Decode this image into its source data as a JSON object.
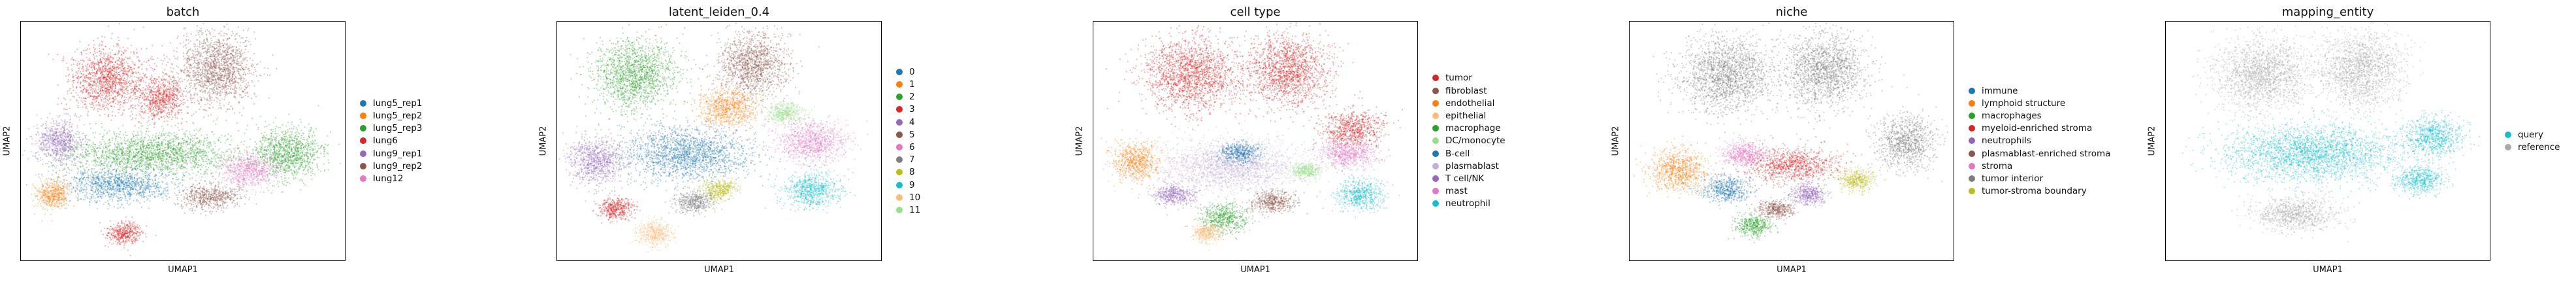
{
  "chart_data": [
    {
      "type": "scatter",
      "title": "batch",
      "xlabel": "UMAP1",
      "ylabel": "UMAP2",
      "legend_position": "right",
      "categories": [
        {
          "label": "lung5_rep1",
          "color": "#1f77b4"
        },
        {
          "label": "lung5_rep2",
          "color": "#ff7f0e"
        },
        {
          "label": "lung5_rep3",
          "color": "#2ca02c"
        },
        {
          "label": "lung6",
          "color": "#d62728"
        },
        {
          "label": "lung9_rep1",
          "color": "#9467bd"
        },
        {
          "label": "lung9_rep2",
          "color": "#8c564b"
        },
        {
          "label": "lung12",
          "color": "#e377c2"
        }
      ],
      "clusters": [
        {
          "cat": 3,
          "x": 0.27,
          "y": 0.24,
          "rx": 0.13,
          "ry": 0.15
        },
        {
          "cat": 5,
          "x": 0.6,
          "y": 0.2,
          "rx": 0.13,
          "ry": 0.17
        },
        {
          "cat": 3,
          "x": 0.43,
          "y": 0.32,
          "rx": 0.08,
          "ry": 0.1
        },
        {
          "cat": 2,
          "x": 0.4,
          "y": 0.55,
          "rx": 0.3,
          "ry": 0.1
        },
        {
          "cat": 2,
          "x": 0.82,
          "y": 0.55,
          "rx": 0.12,
          "ry": 0.12
        },
        {
          "cat": 6,
          "x": 0.7,
          "y": 0.62,
          "rx": 0.1,
          "ry": 0.08
        },
        {
          "cat": 4,
          "x": 0.12,
          "y": 0.5,
          "rx": 0.08,
          "ry": 0.1
        },
        {
          "cat": 0,
          "x": 0.3,
          "y": 0.68,
          "rx": 0.18,
          "ry": 0.08
        },
        {
          "cat": 1,
          "x": 0.1,
          "y": 0.72,
          "rx": 0.06,
          "ry": 0.07
        },
        {
          "cat": 3,
          "x": 0.32,
          "y": 0.88,
          "rx": 0.06,
          "ry": 0.05
        },
        {
          "cat": 5,
          "x": 0.58,
          "y": 0.73,
          "rx": 0.1,
          "ry": 0.06
        }
      ]
    },
    {
      "type": "scatter",
      "title": "latent_leiden_0.4",
      "xlabel": "UMAP1",
      "ylabel": "UMAP2",
      "legend_position": "right",
      "categories": [
        {
          "label": "0",
          "color": "#1f77b4"
        },
        {
          "label": "1",
          "color": "#ff7f0e"
        },
        {
          "label": "2",
          "color": "#2ca02c"
        },
        {
          "label": "3",
          "color": "#d62728"
        },
        {
          "label": "4",
          "color": "#9467bd"
        },
        {
          "label": "5",
          "color": "#8c564b"
        },
        {
          "label": "6",
          "color": "#e377c2"
        },
        {
          "label": "7",
          "color": "#7f7f7f"
        },
        {
          "label": "8",
          "color": "#bcbd22"
        },
        {
          "label": "9",
          "color": "#17becf"
        },
        {
          "label": "10",
          "color": "#ffbb78"
        },
        {
          "label": "11",
          "color": "#98df8a"
        }
      ],
      "clusters": [
        {
          "cat": 2,
          "x": 0.24,
          "y": 0.22,
          "rx": 0.14,
          "ry": 0.16
        },
        {
          "cat": 5,
          "x": 0.6,
          "y": 0.18,
          "rx": 0.12,
          "ry": 0.15
        },
        {
          "cat": 1,
          "x": 0.52,
          "y": 0.36,
          "rx": 0.1,
          "ry": 0.09
        },
        {
          "cat": 0,
          "x": 0.4,
          "y": 0.55,
          "rx": 0.22,
          "ry": 0.12
        },
        {
          "cat": 4,
          "x": 0.12,
          "y": 0.58,
          "rx": 0.09,
          "ry": 0.11
        },
        {
          "cat": 6,
          "x": 0.78,
          "y": 0.5,
          "rx": 0.12,
          "ry": 0.1
        },
        {
          "cat": 9,
          "x": 0.78,
          "y": 0.7,
          "rx": 0.1,
          "ry": 0.08
        },
        {
          "cat": 11,
          "x": 0.7,
          "y": 0.38,
          "rx": 0.06,
          "ry": 0.05
        },
        {
          "cat": 10,
          "x": 0.3,
          "y": 0.88,
          "rx": 0.06,
          "ry": 0.06
        },
        {
          "cat": 8,
          "x": 0.5,
          "y": 0.7,
          "rx": 0.06,
          "ry": 0.05
        },
        {
          "cat": 3,
          "x": 0.18,
          "y": 0.78,
          "rx": 0.06,
          "ry": 0.05
        },
        {
          "cat": 7,
          "x": 0.42,
          "y": 0.75,
          "rx": 0.07,
          "ry": 0.05
        }
      ]
    },
    {
      "type": "scatter",
      "title": "cell type",
      "xlabel": "UMAP1",
      "ylabel": "UMAP2",
      "legend_position": "right",
      "categories": [
        {
          "label": "tumor",
          "color": "#d62728"
        },
        {
          "label": "fibroblast",
          "color": "#8c564b"
        },
        {
          "label": "endothelial",
          "color": "#ff7f0e"
        },
        {
          "label": "epithelial",
          "color": "#ffbb78"
        },
        {
          "label": "macrophage",
          "color": "#2ca02c"
        },
        {
          "label": "DC/monocyte",
          "color": "#98df8a"
        },
        {
          "label": "B-cell",
          "color": "#1f77b4"
        },
        {
          "label": "plasmablast",
          "color": "#c5b0d5"
        },
        {
          "label": "T cell/NK",
          "color": "#9467bd"
        },
        {
          "label": "mast",
          "color": "#e377c2"
        },
        {
          "label": "neutrophil",
          "color": "#17becf"
        }
      ],
      "clusters": [
        {
          "cat": 0,
          "x": 0.3,
          "y": 0.22,
          "rx": 0.16,
          "ry": 0.17
        },
        {
          "cat": 0,
          "x": 0.6,
          "y": 0.2,
          "rx": 0.14,
          "ry": 0.17
        },
        {
          "cat": 0,
          "x": 0.8,
          "y": 0.45,
          "rx": 0.1,
          "ry": 0.09
        },
        {
          "cat": 7,
          "x": 0.42,
          "y": 0.6,
          "rx": 0.24,
          "ry": 0.12
        },
        {
          "cat": 2,
          "x": 0.13,
          "y": 0.58,
          "rx": 0.08,
          "ry": 0.09
        },
        {
          "cat": 9,
          "x": 0.78,
          "y": 0.55,
          "rx": 0.1,
          "ry": 0.07
        },
        {
          "cat": 10,
          "x": 0.82,
          "y": 0.72,
          "rx": 0.08,
          "ry": 0.07
        },
        {
          "cat": 4,
          "x": 0.4,
          "y": 0.82,
          "rx": 0.08,
          "ry": 0.07
        },
        {
          "cat": 1,
          "x": 0.55,
          "y": 0.75,
          "rx": 0.08,
          "ry": 0.05
        },
        {
          "cat": 8,
          "x": 0.25,
          "y": 0.72,
          "rx": 0.07,
          "ry": 0.05
        },
        {
          "cat": 6,
          "x": 0.45,
          "y": 0.55,
          "rx": 0.07,
          "ry": 0.05
        },
        {
          "cat": 3,
          "x": 0.35,
          "y": 0.88,
          "rx": 0.05,
          "ry": 0.04
        },
        {
          "cat": 5,
          "x": 0.65,
          "y": 0.62,
          "rx": 0.05,
          "ry": 0.04
        }
      ]
    },
    {
      "type": "scatter",
      "title": "niche",
      "xlabel": "UMAP1",
      "ylabel": "UMAP2",
      "legend_position": "right",
      "categories": [
        {
          "label": "immune",
          "color": "#1f77b4"
        },
        {
          "label": "lymphoid structure",
          "color": "#ff7f0e"
        },
        {
          "label": "macrophages",
          "color": "#2ca02c"
        },
        {
          "label": "myeloid-enriched stroma",
          "color": "#d62728"
        },
        {
          "label": "neutrophils",
          "color": "#9467bd"
        },
        {
          "label": "plasmablast-enriched stroma",
          "color": "#8c564b"
        },
        {
          "label": "stroma",
          "color": "#e377c2"
        },
        {
          "label": "tumor interior",
          "color": "#7f7f7f"
        },
        {
          "label": "tumor-stroma boundary",
          "color": "#bcbd22"
        }
      ],
      "clusters": [
        {
          "cat": 7,
          "x": 0.3,
          "y": 0.22,
          "rx": 0.16,
          "ry": 0.17
        },
        {
          "cat": 7,
          "x": 0.6,
          "y": 0.2,
          "rx": 0.14,
          "ry": 0.17
        },
        {
          "cat": 7,
          "x": 0.85,
          "y": 0.5,
          "rx": 0.1,
          "ry": 0.12
        },
        {
          "cat": 1,
          "x": 0.15,
          "y": 0.62,
          "rx": 0.1,
          "ry": 0.1
        },
        {
          "cat": 3,
          "x": 0.5,
          "y": 0.6,
          "rx": 0.16,
          "ry": 0.08
        },
        {
          "cat": 6,
          "x": 0.35,
          "y": 0.55,
          "rx": 0.08,
          "ry": 0.06
        },
        {
          "cat": 0,
          "x": 0.3,
          "y": 0.7,
          "rx": 0.08,
          "ry": 0.06
        },
        {
          "cat": 2,
          "x": 0.38,
          "y": 0.85,
          "rx": 0.06,
          "ry": 0.05
        },
        {
          "cat": 4,
          "x": 0.55,
          "y": 0.72,
          "rx": 0.06,
          "ry": 0.05
        },
        {
          "cat": 5,
          "x": 0.45,
          "y": 0.78,
          "rx": 0.06,
          "ry": 0.04
        },
        {
          "cat": 8,
          "x": 0.7,
          "y": 0.66,
          "rx": 0.06,
          "ry": 0.05
        }
      ]
    },
    {
      "type": "scatter",
      "title": "mapping_entity",
      "xlabel": "UMAP1",
      "ylabel": "UMAP2",
      "legend_position": "right",
      "categories": [
        {
          "label": "query",
          "color": "#17becf"
        },
        {
          "label": "reference",
          "color": "#aaaaaa"
        }
      ],
      "clusters": [
        {
          "cat": 1,
          "x": 0.3,
          "y": 0.22,
          "rx": 0.16,
          "ry": 0.17
        },
        {
          "cat": 1,
          "x": 0.6,
          "y": 0.2,
          "rx": 0.14,
          "ry": 0.17
        },
        {
          "cat": 1,
          "x": 0.4,
          "y": 0.8,
          "rx": 0.14,
          "ry": 0.08
        },
        {
          "cat": 0,
          "x": 0.45,
          "y": 0.55,
          "rx": 0.3,
          "ry": 0.13
        },
        {
          "cat": 0,
          "x": 0.82,
          "y": 0.48,
          "rx": 0.1,
          "ry": 0.09
        },
        {
          "cat": 0,
          "x": 0.78,
          "y": 0.66,
          "rx": 0.08,
          "ry": 0.06
        }
      ]
    }
  ]
}
